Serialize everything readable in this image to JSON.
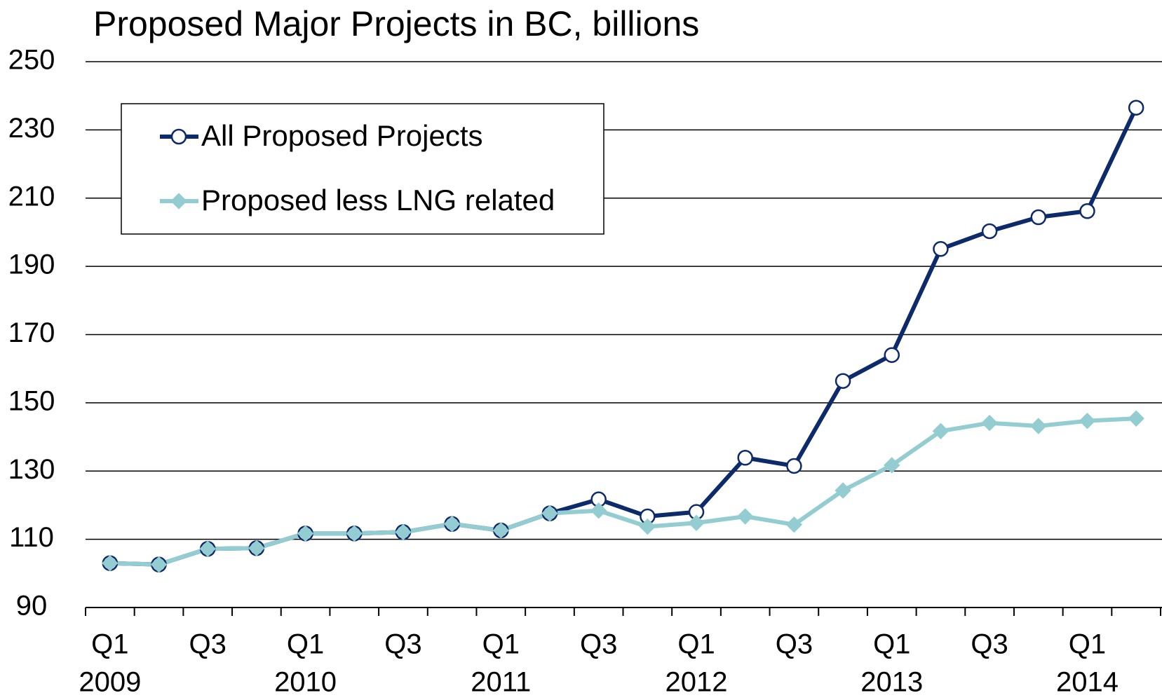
{
  "chart_data": {
    "type": "line",
    "title": "Proposed Major Projects in BC, billions",
    "categories": [
      "Q1",
      null,
      "Q3",
      null,
      "Q1",
      null,
      "Q3",
      null,
      "Q1",
      null,
      "Q3",
      null,
      "Q1",
      null,
      "Q3",
      null,
      "Q1",
      null,
      "Q3",
      null,
      "Q1",
      null
    ],
    "year_labels": [
      "2009",
      null,
      null,
      null,
      "2010",
      null,
      null,
      null,
      "2011",
      null,
      null,
      null,
      "2012",
      null,
      null,
      null,
      "2013",
      null,
      null,
      null,
      "2014",
      null
    ],
    "series": [
      {
        "name": "All Proposed Projects",
        "color": "#0d2a6b",
        "marker": "circle",
        "values": [
          103.0,
          102.6,
          107.2,
          107.4,
          111.7,
          111.7,
          112.1,
          114.5,
          112.6,
          117.6,
          121.7,
          116.7,
          118.0,
          133.9,
          131.5,
          156.4,
          164.0,
          195.1,
          200.3,
          204.4,
          206.2,
          236.5
        ]
      },
      {
        "name": "Proposed less LNG related",
        "color": "#93cdd1",
        "marker": "diamond",
        "values": [
          103.0,
          102.6,
          107.2,
          107.4,
          111.7,
          111.7,
          112.1,
          114.5,
          112.6,
          117.6,
          118.4,
          113.7,
          114.8,
          116.7,
          114.3,
          124.3,
          131.7,
          141.7,
          144.1,
          143.2,
          144.7,
          145.4
        ]
      }
    ],
    "ylim": [
      90,
      250
    ],
    "yticks": [
      90,
      110,
      130,
      150,
      170,
      190,
      210,
      230,
      250
    ],
    "grid": true,
    "legend": "upper left"
  }
}
